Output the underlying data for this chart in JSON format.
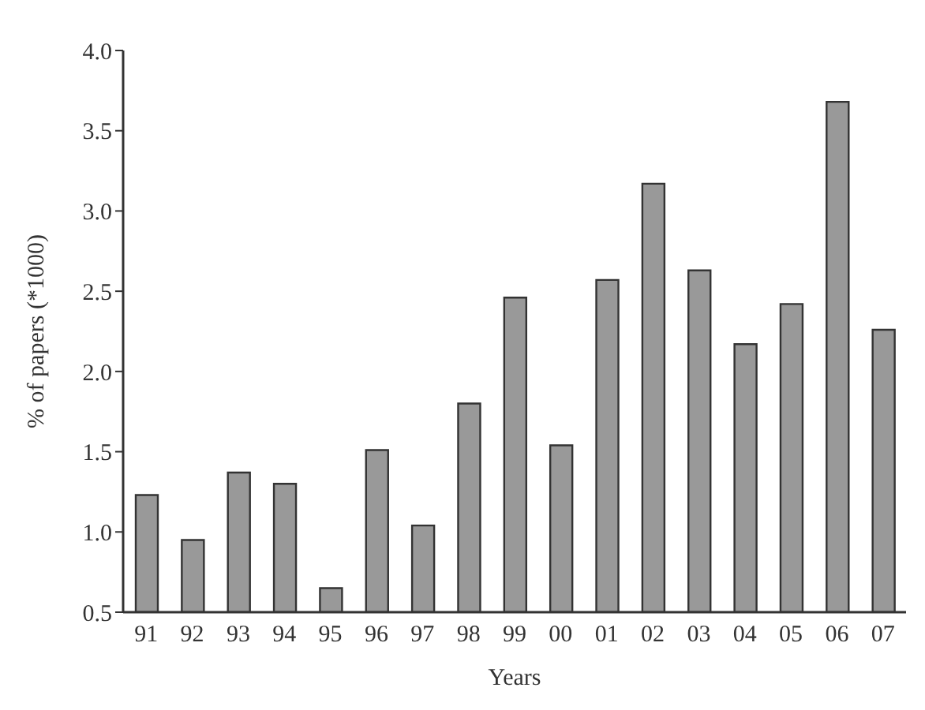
{
  "chart_data": {
    "type": "bar",
    "xlabel": "Years",
    "ylabel": "% of papers (*1000)",
    "categories": [
      "91",
      "92",
      "93",
      "94",
      "95",
      "96",
      "97",
      "98",
      "99",
      "00",
      "01",
      "02",
      "03",
      "04",
      "05",
      "06",
      "07"
    ],
    "values": [
      1.23,
      0.95,
      1.37,
      1.3,
      0.65,
      1.51,
      1.04,
      1.8,
      2.46,
      1.54,
      2.57,
      3.17,
      2.63,
      2.17,
      2.42,
      3.68,
      2.26
    ],
    "color": "#999999",
    "ylim": [
      0.5,
      4.0
    ],
    "yticks": [
      {
        "value": 0.5,
        "label": "0.5"
      },
      {
        "value": 1,
        "label": "1.0"
      },
      {
        "value": 1.5,
        "label": "1.5"
      },
      {
        "value": 2,
        "label": "2.0"
      },
      {
        "value": 2.5,
        "label": "2.5"
      },
      {
        "value": 3,
        "label": "3.0"
      },
      {
        "value": 3.5,
        "label": "3.5"
      },
      {
        "value": 4,
        "label": "4.0"
      }
    ],
    "grid": false,
    "legend": false
  }
}
